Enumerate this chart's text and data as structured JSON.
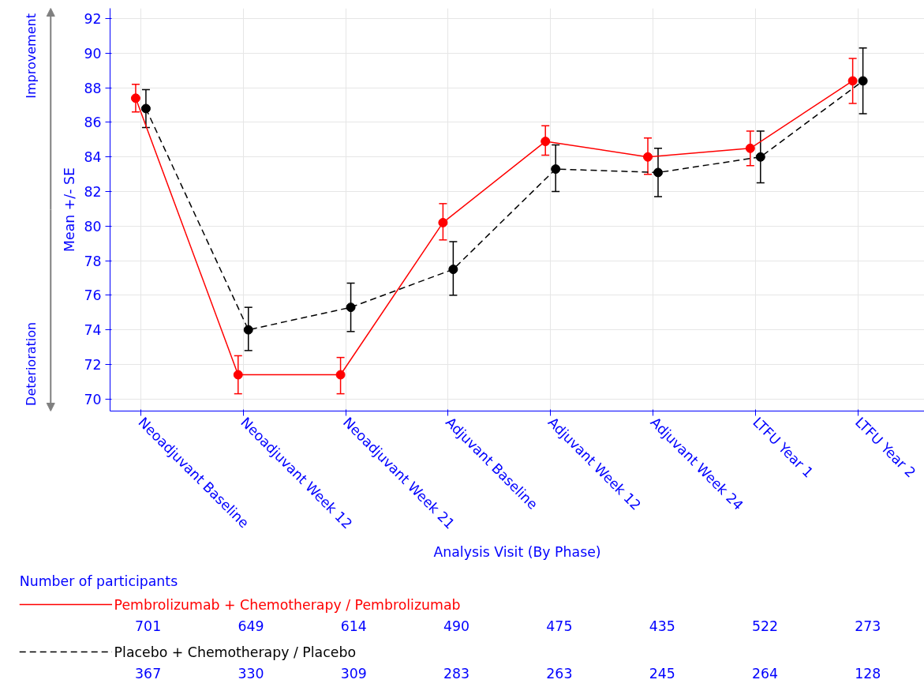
{
  "chart_data": {
    "type": "line",
    "xlabel": "Analysis Visit (By Phase)",
    "ylabel": "Mean +/- SE",
    "categories": [
      "Neoadjuvant Baseline",
      "Neoadjuvant Week 12",
      "Neoadjuvant Week 21",
      "Adjuvant Baseline",
      "Adjuvant Week 12",
      "Adjuvant Week 24",
      "LTFU Year 1",
      "LTFU Year 2"
    ],
    "series": [
      {
        "name": "Pembrolizumab + Chemotherapy / Pembrolizumab",
        "color": "#ff0000",
        "line_style": "solid",
        "values": [
          87.4,
          71.4,
          71.4,
          80.2,
          84.9,
          84.0,
          84.5,
          88.4
        ],
        "errors": [
          [
            86.6,
            88.2
          ],
          [
            70.3,
            72.5
          ],
          [
            70.3,
            72.4
          ],
          [
            79.2,
            81.3
          ],
          [
            84.1,
            85.8
          ],
          [
            83.0,
            85.1
          ],
          [
            83.5,
            85.5
          ],
          [
            87.1,
            89.7
          ]
        ]
      },
      {
        "name": "Placebo + Chemotherapy / Placebo",
        "color": "#000000",
        "line_style": "dashed",
        "values": [
          86.8,
          74.0,
          75.3,
          77.5,
          83.3,
          83.1,
          84.0,
          88.4
        ],
        "errors": [
          [
            85.7,
            87.9
          ],
          [
            72.8,
            75.3
          ],
          [
            73.9,
            76.7
          ],
          [
            76.0,
            79.1
          ],
          [
            82.0,
            84.7
          ],
          [
            81.7,
            84.5
          ],
          [
            82.5,
            85.5
          ],
          [
            86.5,
            90.3
          ]
        ]
      }
    ],
    "ylim": [
      69.3,
      92.6
    ],
    "yticks": [
      70,
      72,
      74,
      76,
      78,
      80,
      82,
      84,
      86,
      88,
      90,
      92
    ],
    "grid": true,
    "marker": "circle",
    "legend": "bottom",
    "annotations": [
      "Improvement",
      "Deterioration",
      "Number of participants",
      "701",
      "649",
      "614",
      "490",
      "475",
      "435",
      "522",
      "273",
      "367",
      "330",
      "309",
      "283",
      "263",
      "245",
      "264",
      "128"
    ]
  }
}
